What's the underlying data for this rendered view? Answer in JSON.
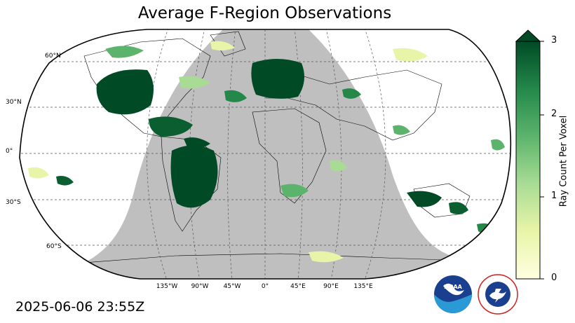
{
  "title": "Average F-Region Observations",
  "timestamp": "2025-06-06 23:55Z",
  "colorbar": {
    "label": "Ray Count Per Voxel",
    "ticks": [
      "0",
      "1",
      "2",
      "3"
    ],
    "colors": [
      "#ffffe0",
      "#e8f5a8",
      "#a8dc94",
      "#5cb46c",
      "#23884a",
      "#004a25"
    ]
  },
  "lat_labels": [
    "60°N",
    "30°N",
    "0°",
    "30°S",
    "60°S"
  ],
  "lon_labels": [
    "135°W",
    "90°W",
    "45°W",
    "0°",
    "45°E",
    "90°E",
    "135°E"
  ],
  "night_color": "#bfbfbf",
  "logos": {
    "noaa": "NOAA",
    "nws": "NATIONAL WEATHER SERVICE"
  }
}
